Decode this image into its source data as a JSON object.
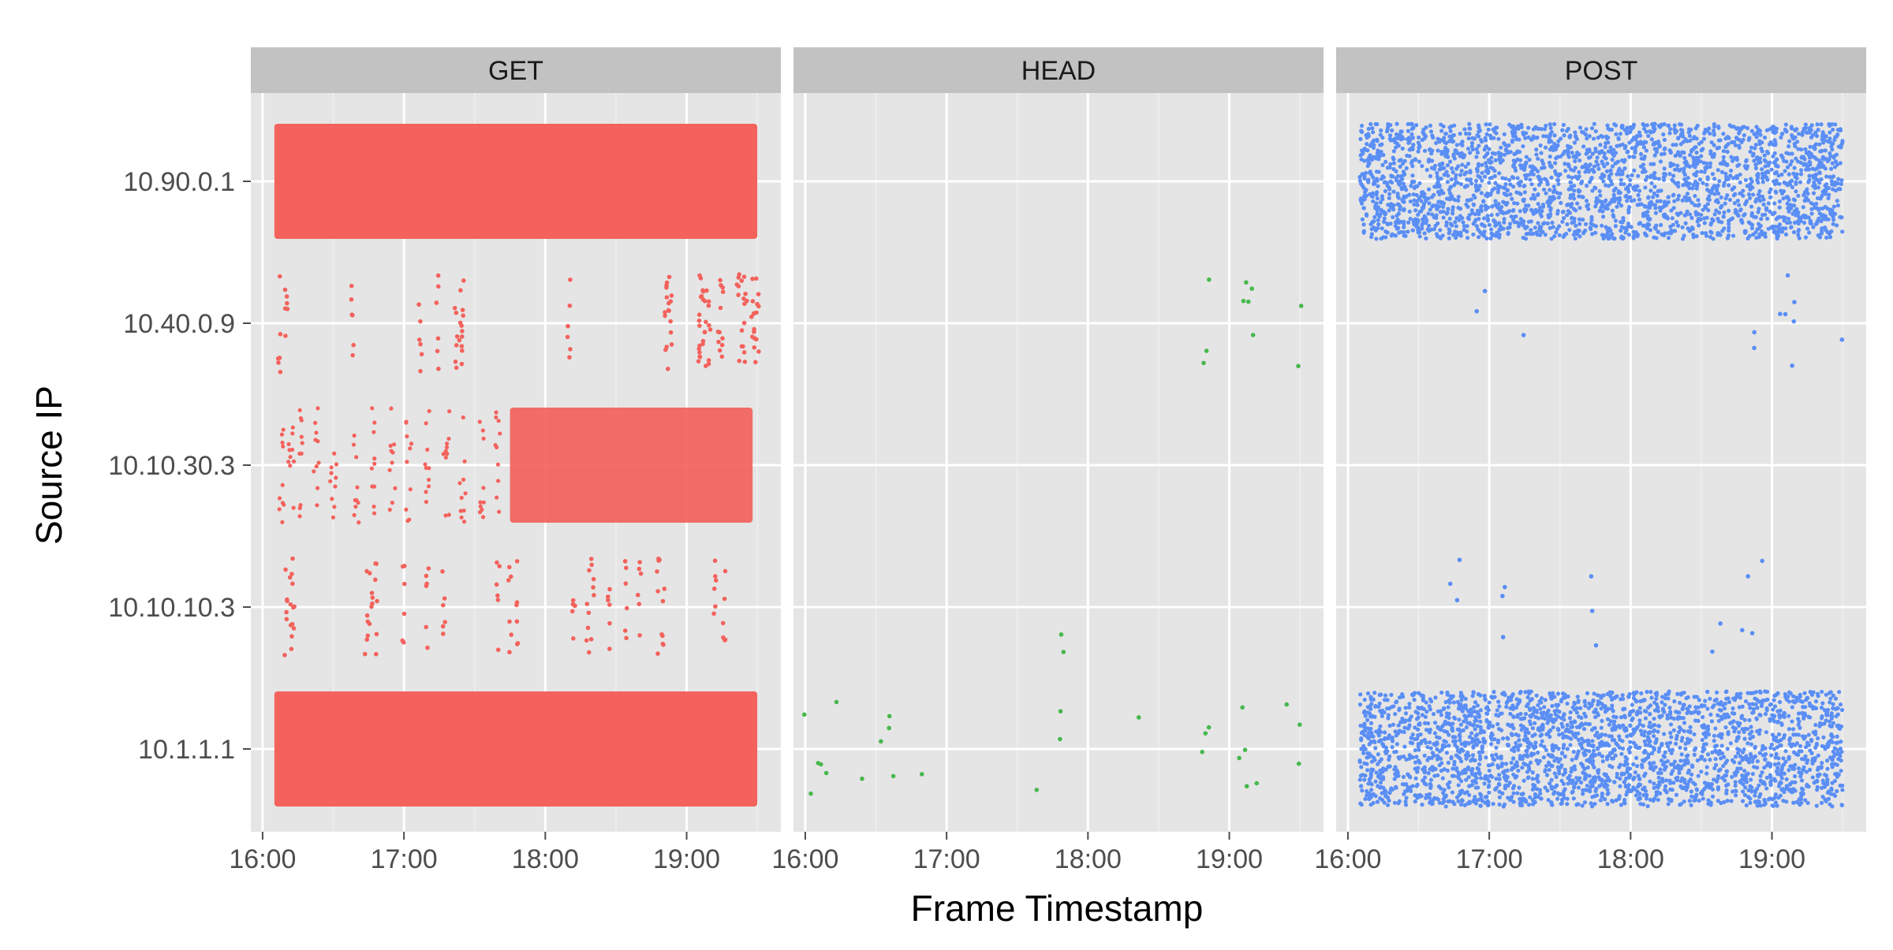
{
  "chart_data": {
    "type": "scatter",
    "xlabel": "Frame Timestamp",
    "ylabel": "Source IP",
    "x_ticks": [
      "16:00",
      "17:00",
      "18:00",
      "19:00"
    ],
    "x_range": [
      "15:55",
      "19:40"
    ],
    "y_categories": [
      "10.1.1.1",
      "10.10.10.3",
      "10.10.30.3",
      "10.40.0.9",
      "10.90.0.1"
    ],
    "grid": true,
    "legend": "none",
    "panel_background": "#e5e5e5",
    "strip_background": "#c2c2c2",
    "panels": [
      {
        "name": "GET",
        "color": "#f3625c",
        "series": [
          {
            "ip": "10.90.0.1",
            "density": "dense",
            "x_start": "16:05",
            "x_end": "19:30",
            "samples": [
              "16:05",
              "19:30"
            ]
          },
          {
            "ip": "10.1.1.1",
            "density": "dense",
            "x_start": "16:05",
            "x_end": "19:30",
            "samples": [
              "16:05",
              "19:30"
            ]
          },
          {
            "ip": "10.10.30.3",
            "density": "mixed",
            "x_start": "16:05",
            "x_end": "19:28",
            "dense_from": "17:45",
            "samples": [
              "16:08",
              "16:12",
              "16:16",
              "16:23",
              "16:30",
              "16:40",
              "16:47",
              "16:55",
              "17:02",
              "17:10",
              "17:18",
              "17:25",
              "17:33",
              "17:40"
            ]
          },
          {
            "ip": "10.10.10.3",
            "density": "sparse",
            "samples": [
              "16:10",
              "16:12",
              "16:13",
              "16:44",
              "16:46",
              "16:48",
              "17:00",
              "17:10",
              "17:17",
              "17:40",
              "17:45",
              "17:48",
              "18:12",
              "18:18",
              "18:20",
              "18:27",
              "18:34",
              "18:40",
              "18:48",
              "18:50",
              "19:12",
              "19:16"
            ]
          },
          {
            "ip": "10.40.0.9",
            "density": "sparse",
            "samples": [
              "16:07",
              "16:10",
              "16:38",
              "17:07",
              "17:14",
              "17:22",
              "17:24",
              "17:25",
              "18:10",
              "18:51",
              "18:52",
              "18:53",
              "19:05",
              "19:06",
              "19:07",
              "19:08",
              "19:10",
              "19:14",
              "19:15",
              "19:22",
              "19:24",
              "19:25",
              "19:28",
              "19:29",
              "19:30"
            ]
          }
        ]
      },
      {
        "name": "HEAD",
        "color": "#46b84c",
        "series": [
          {
            "ip": "10.1.1.1",
            "density": "sparse",
            "samples": [
              "16:00",
              "16:02",
              "16:05",
              "16:07",
              "16:09",
              "16:13",
              "16:24",
              "16:32",
              "16:35",
              "16:36",
              "16:38",
              "16:50",
              "17:38",
              "17:48",
              "17:49",
              "18:22",
              "18:49",
              "18:50",
              "18:51",
              "19:04",
              "19:06",
              "19:07",
              "19:08",
              "19:12",
              "19:25",
              "19:29",
              "19:30"
            ]
          },
          {
            "ip": "10.10.10.3",
            "density": "sparse",
            "samples": [
              "17:48",
              "17:49"
            ]
          },
          {
            "ip": "10.40.0.9",
            "density": "sparse",
            "samples": [
              "18:49",
              "18:50",
              "18:51",
              "19:06",
              "19:07",
              "19:08",
              "19:09",
              "19:10",
              "19:29",
              "19:30"
            ]
          }
        ]
      },
      {
        "name": "POST",
        "color": "#5a8ef5",
        "series": [
          {
            "ip": "10.90.0.1",
            "density": "dense",
            "x_start": "16:05",
            "x_end": "19:30",
            "samples": [
              "16:05",
              "19:30"
            ]
          },
          {
            "ip": "10.1.1.1",
            "density": "dense",
            "x_start": "16:05",
            "x_end": "19:30",
            "samples": [
              "16:05",
              "19:30"
            ]
          },
          {
            "ip": "10.10.10.3",
            "density": "sparse",
            "samples": [
              "16:44",
              "16:46",
              "16:48",
              "17:05",
              "17:06",
              "17:07",
              "17:43",
              "17:44",
              "17:45",
              "18:35",
              "18:38",
              "18:48",
              "18:50",
              "18:52",
              "18:56"
            ]
          },
          {
            "ip": "10.40.0.9",
            "density": "sparse",
            "samples": [
              "16:55",
              "16:58",
              "17:15",
              "18:52",
              "18:53",
              "19:04",
              "19:06",
              "19:07",
              "19:08",
              "19:09",
              "19:10",
              "19:30"
            ]
          }
        ]
      }
    ]
  }
}
